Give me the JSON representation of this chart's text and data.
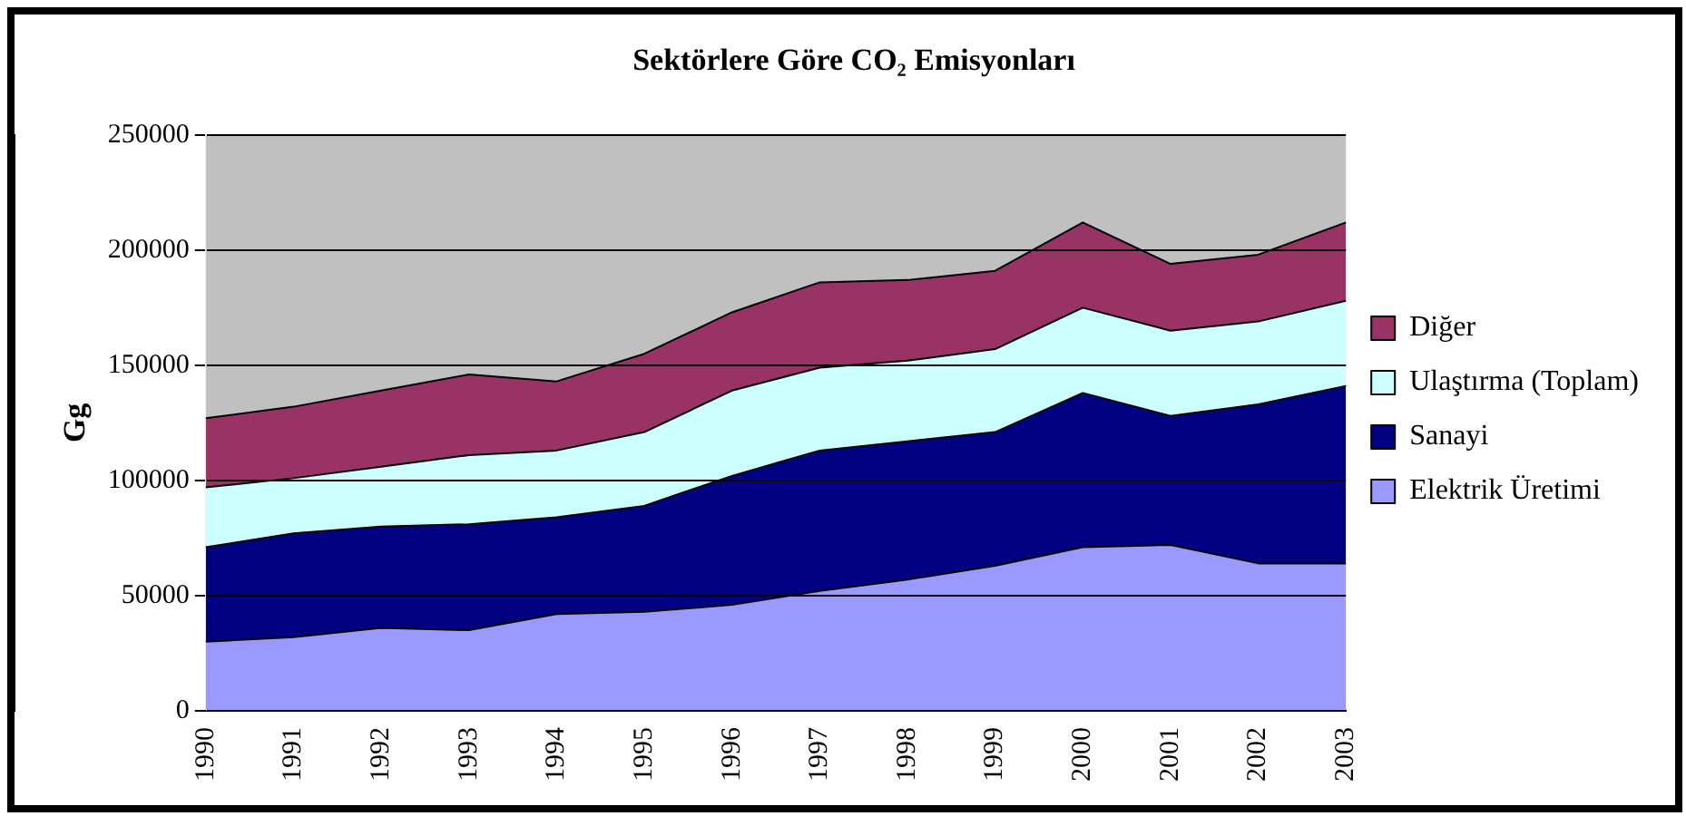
{
  "chart_data": {
    "type": "area",
    "title": "Sektörlere Göre CO₂ Emisyonları",
    "ylabel": "Gg",
    "stacked": true,
    "grid": "y",
    "legend": "right",
    "marker": "none",
    "categories": [
      "1990",
      "1991",
      "1992",
      "1993",
      "1994",
      "1995",
      "1996",
      "1997",
      "1998",
      "1999",
      "2000",
      "2001",
      "2002",
      "2003"
    ],
    "ylim": [
      0,
      250000
    ],
    "yticks": [
      0,
      50000,
      100000,
      150000,
      200000,
      250000
    ],
    "series": [
      {
        "name": "Elektrik Üretimi",
        "color": "#9999ff",
        "values": [
          30000,
          32000,
          36000,
          35000,
          42000,
          43000,
          46000,
          52000,
          57000,
          63000,
          71000,
          72000,
          64000,
          64000
        ]
      },
      {
        "name": "Sanayi",
        "color": "#000080",
        "values": [
          41000,
          45000,
          44000,
          46000,
          42000,
          46000,
          56000,
          61000,
          60000,
          58000,
          67000,
          56000,
          69000,
          77000
        ]
      },
      {
        "name": "Ulaştırma (Toplam)",
        "color": "#ccffff",
        "values": [
          26000,
          24000,
          26000,
          30000,
          29000,
          32000,
          37000,
          36000,
          35000,
          36000,
          37000,
          37000,
          36000,
          37000
        ]
      },
      {
        "name": "Diğer",
        "color": "#993366",
        "values": [
          30000,
          31000,
          33000,
          35000,
          30000,
          34000,
          34000,
          37000,
          35000,
          34000,
          37000,
          29000,
          29000,
          34000
        ]
      }
    ]
  }
}
